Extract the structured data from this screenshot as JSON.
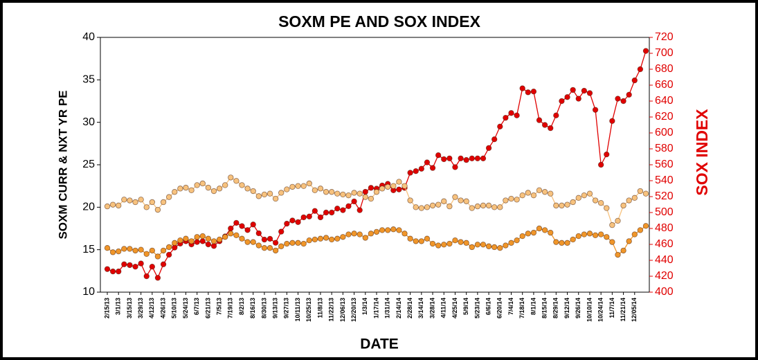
{
  "chart_data": {
    "type": "line",
    "title": "SOXM PE AND SOX INDEX",
    "x_label": "DATE",
    "y_label": "SOXM CURR & NXT YR PE",
    "y2_label": "SOX INDEX",
    "y2_color": "#e00000",
    "categories": [
      "2/15/13",
      null,
      "3/1/13",
      null,
      "3/15/13",
      null,
      "3/29/13",
      null,
      "4/12/13",
      null,
      "4/26/13",
      null,
      "5/10/13",
      null,
      "5/24/13",
      null,
      "6/7/13",
      null,
      "6/21/13",
      null,
      "7/5/13",
      null,
      "7/19/13",
      null,
      "8/2/13",
      null,
      "8/16/13",
      null,
      "8/30/13",
      null,
      "9/13/13",
      null,
      "9/27/13",
      null,
      "10/11/13",
      null,
      "10/25/13",
      null,
      "11/8/13",
      null,
      "11/22/13",
      null,
      "12/06/13",
      null,
      "12/20/13",
      null,
      "1/3/14",
      null,
      "1/17/14",
      null,
      "1/31/14",
      null,
      "2/14/14",
      null,
      "2/28/14",
      null,
      "3/14/14",
      null,
      "3/28/14",
      null,
      "4/11/14",
      null,
      "4/25/14",
      null,
      "5/9/14",
      null,
      "5/23/14",
      null,
      "6/6/14",
      null,
      "6/20/14",
      null,
      "7/4/14",
      null,
      "7/18/14",
      null,
      "8/1/14",
      null,
      "8/15/14",
      null,
      "8/29/14",
      null,
      "9/12/14",
      null,
      "9/26/14",
      null,
      "10/10/14",
      null,
      "10/24/14",
      null,
      "11/7/14",
      null,
      "11/21/14",
      null,
      "12/05/14",
      null,
      null
    ],
    "series": [
      {
        "color": "#e00000",
        "axis": "y2",
        "values": [
          429,
          426,
          426,
          435,
          434,
          432,
          436,
          420,
          432,
          418,
          435,
          447,
          456,
          461,
          464,
          460,
          463,
          464,
          460,
          458,
          464,
          470,
          480,
          487,
          483,
          478,
          485,
          474,
          466,
          467,
          462,
          476,
          486,
          490,
          488,
          494,
          495,
          502,
          494,
          500,
          500,
          505,
          503,
          508,
          514,
          503,
          526,
          531,
          530,
          534,
          536,
          528,
          529,
          531,
          550,
          552,
          555,
          563,
          556,
          572,
          567,
          568,
          557,
          568,
          566,
          568,
          568,
          568,
          581,
          592,
          608,
          619,
          625,
          622,
          656,
          651,
          652,
          616,
          610,
          606,
          622,
          640,
          645,
          654,
          643,
          653,
          650,
          629,
          560,
          573,
          615,
          643,
          640,
          648,
          666,
          680,
          703
        ]
      },
      {
        "color": "#f7c27e",
        "values": [
          20.1,
          20.3,
          20.2,
          20.9,
          20.8,
          20.6,
          20.9,
          20.0,
          20.6,
          19.7,
          20.6,
          21.2,
          21.8,
          22.2,
          22.3,
          22.0,
          22.6,
          22.8,
          22.3,
          21.9,
          22.2,
          22.6,
          23.5,
          23.1,
          22.6,
          22.2,
          21.9,
          21.3,
          21.5,
          21.6,
          21.0,
          21.7,
          22.1,
          22.4,
          22.5,
          22.5,
          22.8,
          22.0,
          22.2,
          21.8,
          21.8,
          21.6,
          21.5,
          21.4,
          21.7,
          21.6,
          21.2,
          21.0,
          21.8,
          22.2,
          22.4,
          22.5,
          23.0,
          22.5,
          20.8,
          20.0,
          19.9,
          20.0,
          20.2,
          20.3,
          20.7,
          20.1,
          21.2,
          20.8,
          20.7,
          19.9,
          20.1,
          20.2,
          20.2,
          20.0,
          20.0,
          20.8,
          21.0,
          20.9,
          21.4,
          21.7,
          21.4,
          22.0,
          21.8,
          21.6,
          20.2,
          20.2,
          20.3,
          20.6,
          21.1,
          21.4,
          21.6,
          20.8,
          20.5,
          19.9,
          17.9,
          18.4,
          20.2,
          20.8,
          21.1,
          21.9,
          21.6
        ]
      },
      {
        "color": "#f0962a",
        "values": [
          15.2,
          14.7,
          14.8,
          15.1,
          15.1,
          14.9,
          15.0,
          14.5,
          14.9,
          14.2,
          14.9,
          15.3,
          15.8,
          16.1,
          16.3,
          16.0,
          16.5,
          16.6,
          16.3,
          16.0,
          16.2,
          16.5,
          16.9,
          16.7,
          16.3,
          15.9,
          15.9,
          15.5,
          15.2,
          15.2,
          14.9,
          15.4,
          15.7,
          15.8,
          15.8,
          15.7,
          16.1,
          16.2,
          16.3,
          16.4,
          16.2,
          16.3,
          16.5,
          16.8,
          16.9,
          16.8,
          16.4,
          16.9,
          17.1,
          17.3,
          17.3,
          17.4,
          17.3,
          16.9,
          16.3,
          16.0,
          16.0,
          16.3,
          15.7,
          15.5,
          15.6,
          15.7,
          16.1,
          15.9,
          15.8,
          15.3,
          15.6,
          15.6,
          15.4,
          15.3,
          15.2,
          15.5,
          15.8,
          16.1,
          16.6,
          16.9,
          17.0,
          17.5,
          17.3,
          17.0,
          15.9,
          15.8,
          15.8,
          16.2,
          16.6,
          16.8,
          16.9,
          16.7,
          16.8,
          16.5,
          15.9,
          14.4,
          14.9,
          16.0,
          16.8,
          17.3,
          17.8
        ]
      }
    ],
    "ylim": [
      10,
      40
    ],
    "yticks": [
      10,
      15,
      20,
      25,
      30,
      35,
      40
    ],
    "y2lim": [
      400,
      720
    ],
    "y2ticks": [
      400,
      420,
      440,
      460,
      480,
      500,
      520,
      540,
      560,
      580,
      600,
      620,
      640,
      660,
      680,
      700,
      720
    ],
    "grid": false
  }
}
